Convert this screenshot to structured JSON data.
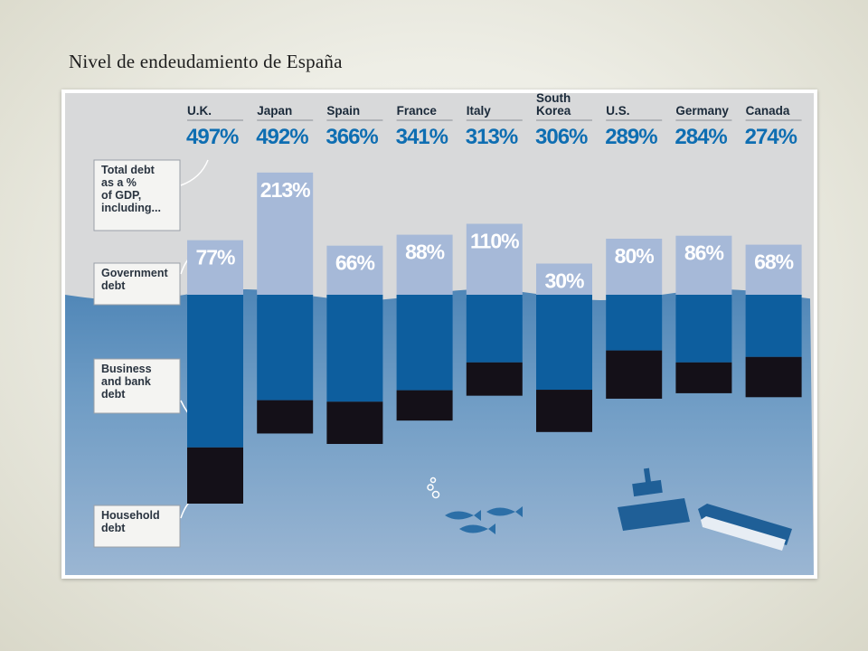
{
  "slide": {
    "title": "Nivel de endeudamiento de España"
  },
  "colors": {
    "sky": "#d8d9da",
    "sea": "#5e92bf",
    "sea_deep": "#8aabcb",
    "government": "#a6b9d8",
    "government_text": "#ffffff",
    "business": "#0d5e9e",
    "household": "#141018",
    "total_text": "#0e6eb2",
    "country_text": "#1b2a3a"
  },
  "legend": [
    {
      "key": "total",
      "lines": [
        "Total debt",
        "as a %",
        "of GDP,",
        "including..."
      ]
    },
    {
      "key": "government",
      "lines": [
        "Government",
        "debt"
      ]
    },
    {
      "key": "business",
      "lines": [
        "Business",
        "and bank",
        "debt"
      ]
    },
    {
      "key": "household",
      "lines": [
        "Household",
        "debt"
      ]
    }
  ],
  "chart_data": {
    "type": "bar",
    "subtype": "stacked",
    "categories": [
      [
        "U.K."
      ],
      [
        "Japan"
      ],
      [
        "Spain"
      ],
      [
        "France"
      ],
      [
        "Italy"
      ],
      [
        "South",
        "Korea"
      ],
      [
        "U.S."
      ],
      [
        "Germany"
      ],
      [
        "Canada"
      ]
    ],
    "total_labels": [
      "497%",
      "492%",
      "366%",
      "341%",
      "313%",
      "306%",
      "289%",
      "284%",
      "274%"
    ],
    "government_labels": [
      "77%",
      "213%",
      "66%",
      "88%",
      "110%",
      "30%",
      "80%",
      "86%",
      "68%"
    ],
    "series": [
      {
        "name": "Total debt as a % of GDP",
        "values": [
          497,
          492,
          366,
          341,
          313,
          306,
          289,
          284,
          274
        ]
      },
      {
        "name": "Government debt",
        "values": [
          77,
          213,
          66,
          88,
          110,
          30,
          80,
          86,
          68
        ]
      },
      {
        "name": "Business and bank debt",
        "values": [
          307,
          212,
          215,
          192,
          136,
          191,
          112,
          136,
          125
        ]
      },
      {
        "name": "Household debt",
        "values": [
          113,
          67,
          85,
          61,
          67,
          85,
          97,
          62,
          81
        ]
      }
    ],
    "unit": "% of GDP"
  }
}
